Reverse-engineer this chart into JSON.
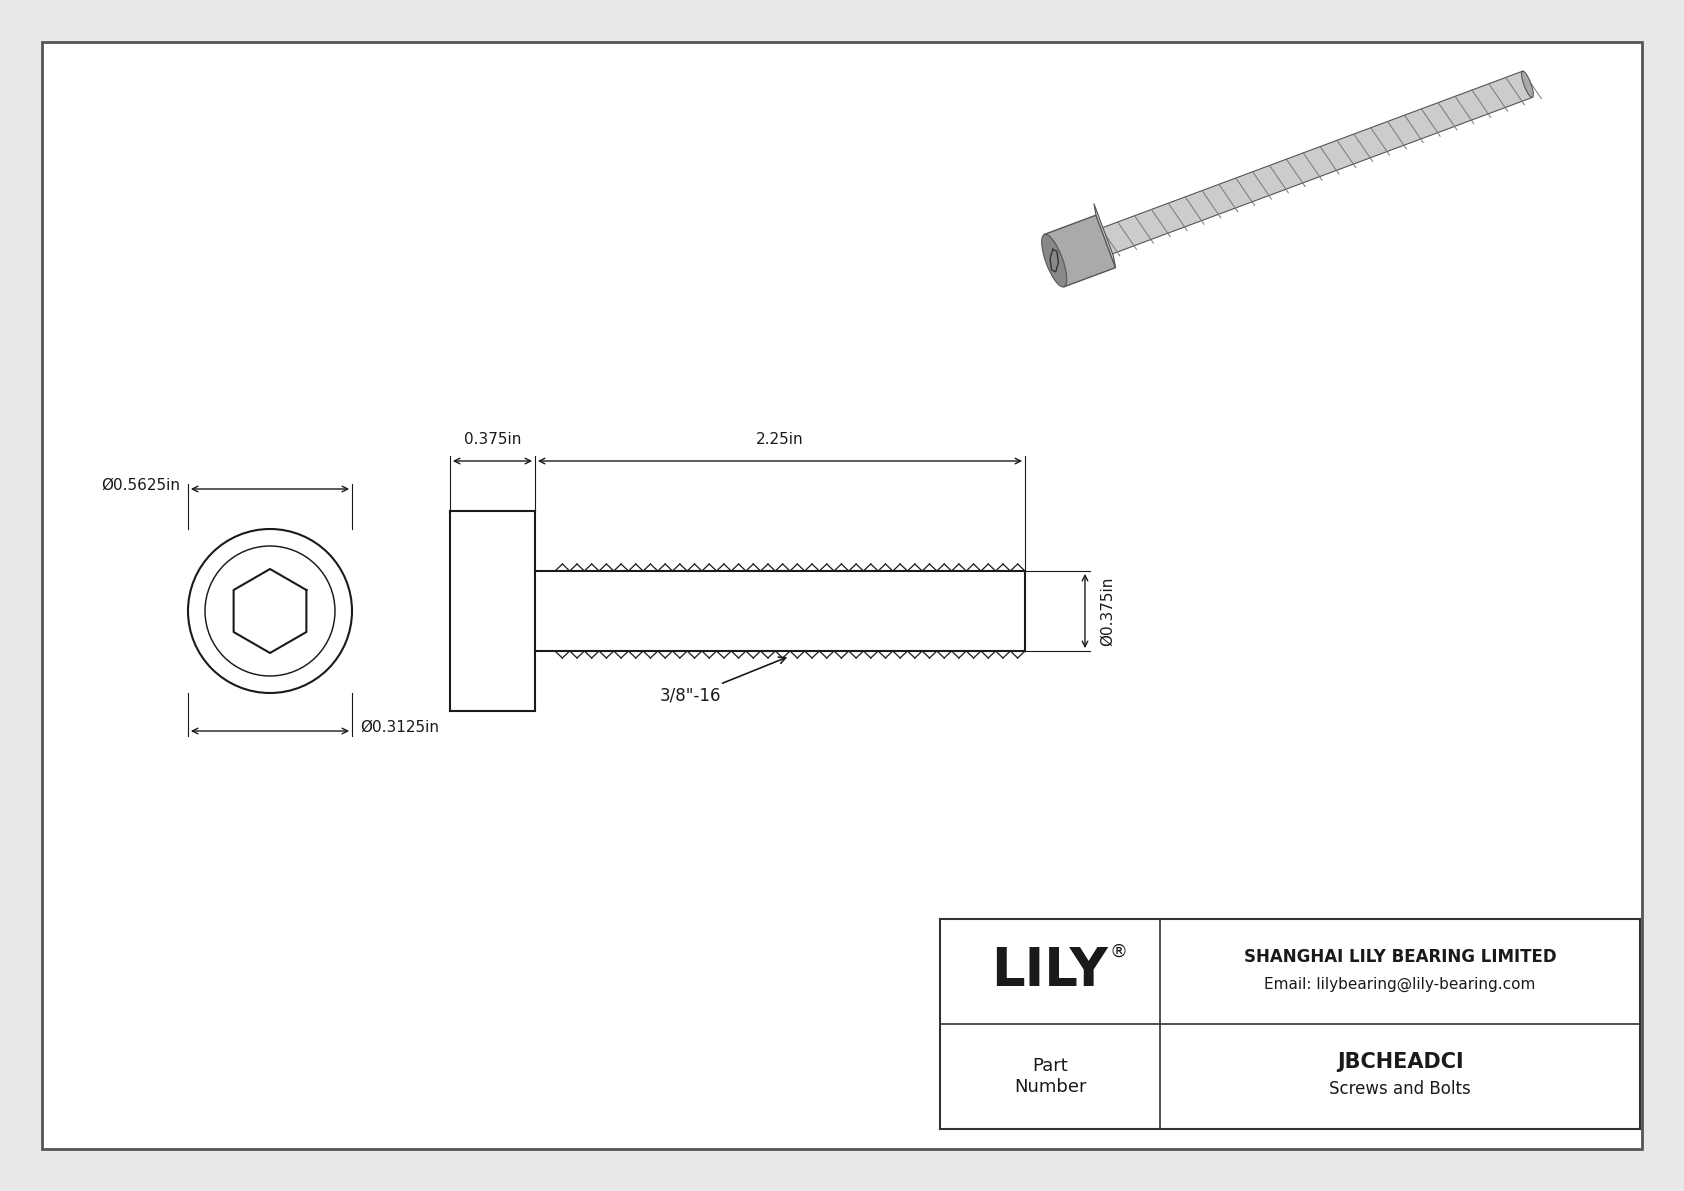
{
  "bg_color": "#e8e8e8",
  "paper_color": "#ffffff",
  "line_color": "#1a1a1a",
  "dim_color": "#1a1a1a",
  "title": "JBCHEADCI",
  "subtitle": "Screws and Bolts",
  "company": "SHANGHAI LILY BEARING LIMITED",
  "email": "Email: lilybearing@lily-bearing.com",
  "part_label": "Part\nNumber",
  "logo": "LILY",
  "logo_reg": "®",
  "dim_head_diam": "Ø0.5625in",
  "dim_hex_diam": "Ø0.3125in",
  "dim_head_len": "0.375in",
  "dim_body_len": "2.25in",
  "dim_shank_diam": "Ø0.375in",
  "thread_label": "3/8\"-16",
  "gray_dark": "#888888",
  "gray_mid": "#aaaaaa",
  "gray_light": "#cccccc",
  "gray_lighter": "#dddddd"
}
